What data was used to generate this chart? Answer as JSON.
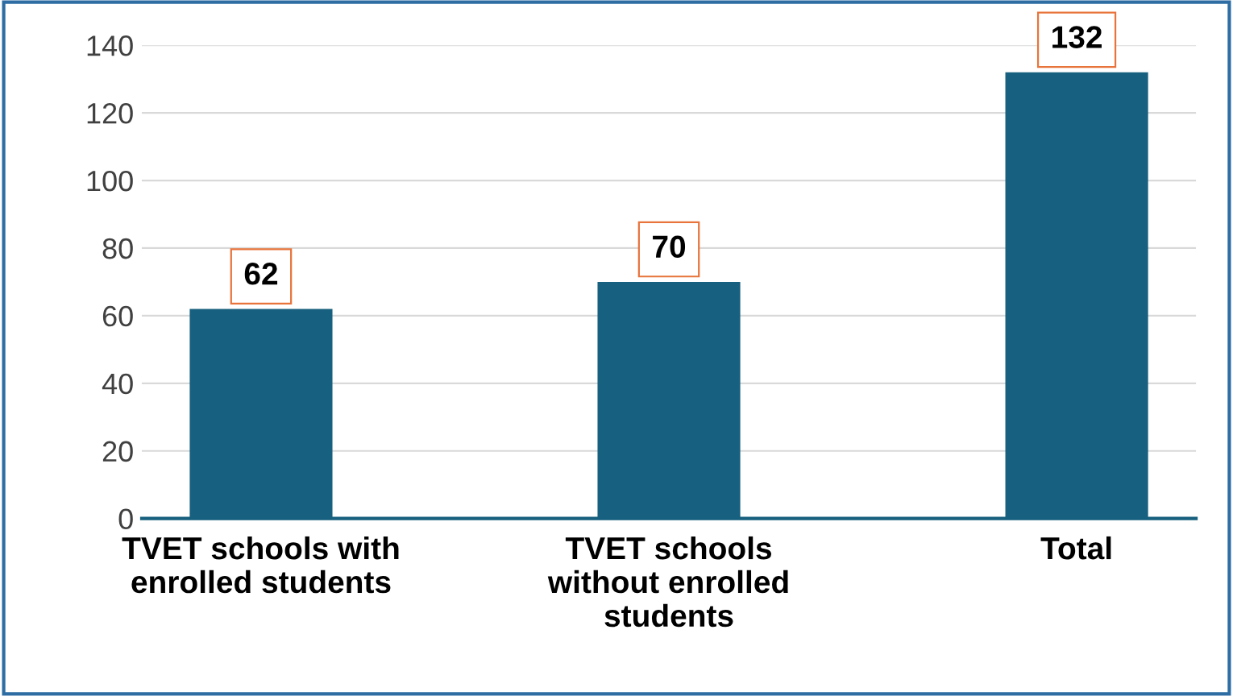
{
  "chart_data": {
    "type": "bar",
    "categories": [
      "TVET schools with\nenrolled students",
      "TVET schools\nwithout enrolled\nstudents",
      "Total"
    ],
    "values": [
      62,
      70,
      132
    ],
    "color": "#17607f",
    "ylim": [
      0,
      140
    ],
    "yticks": [
      0,
      20,
      40,
      60,
      80,
      100,
      120,
      140
    ],
    "grid": "y",
    "data_labels": true
  }
}
